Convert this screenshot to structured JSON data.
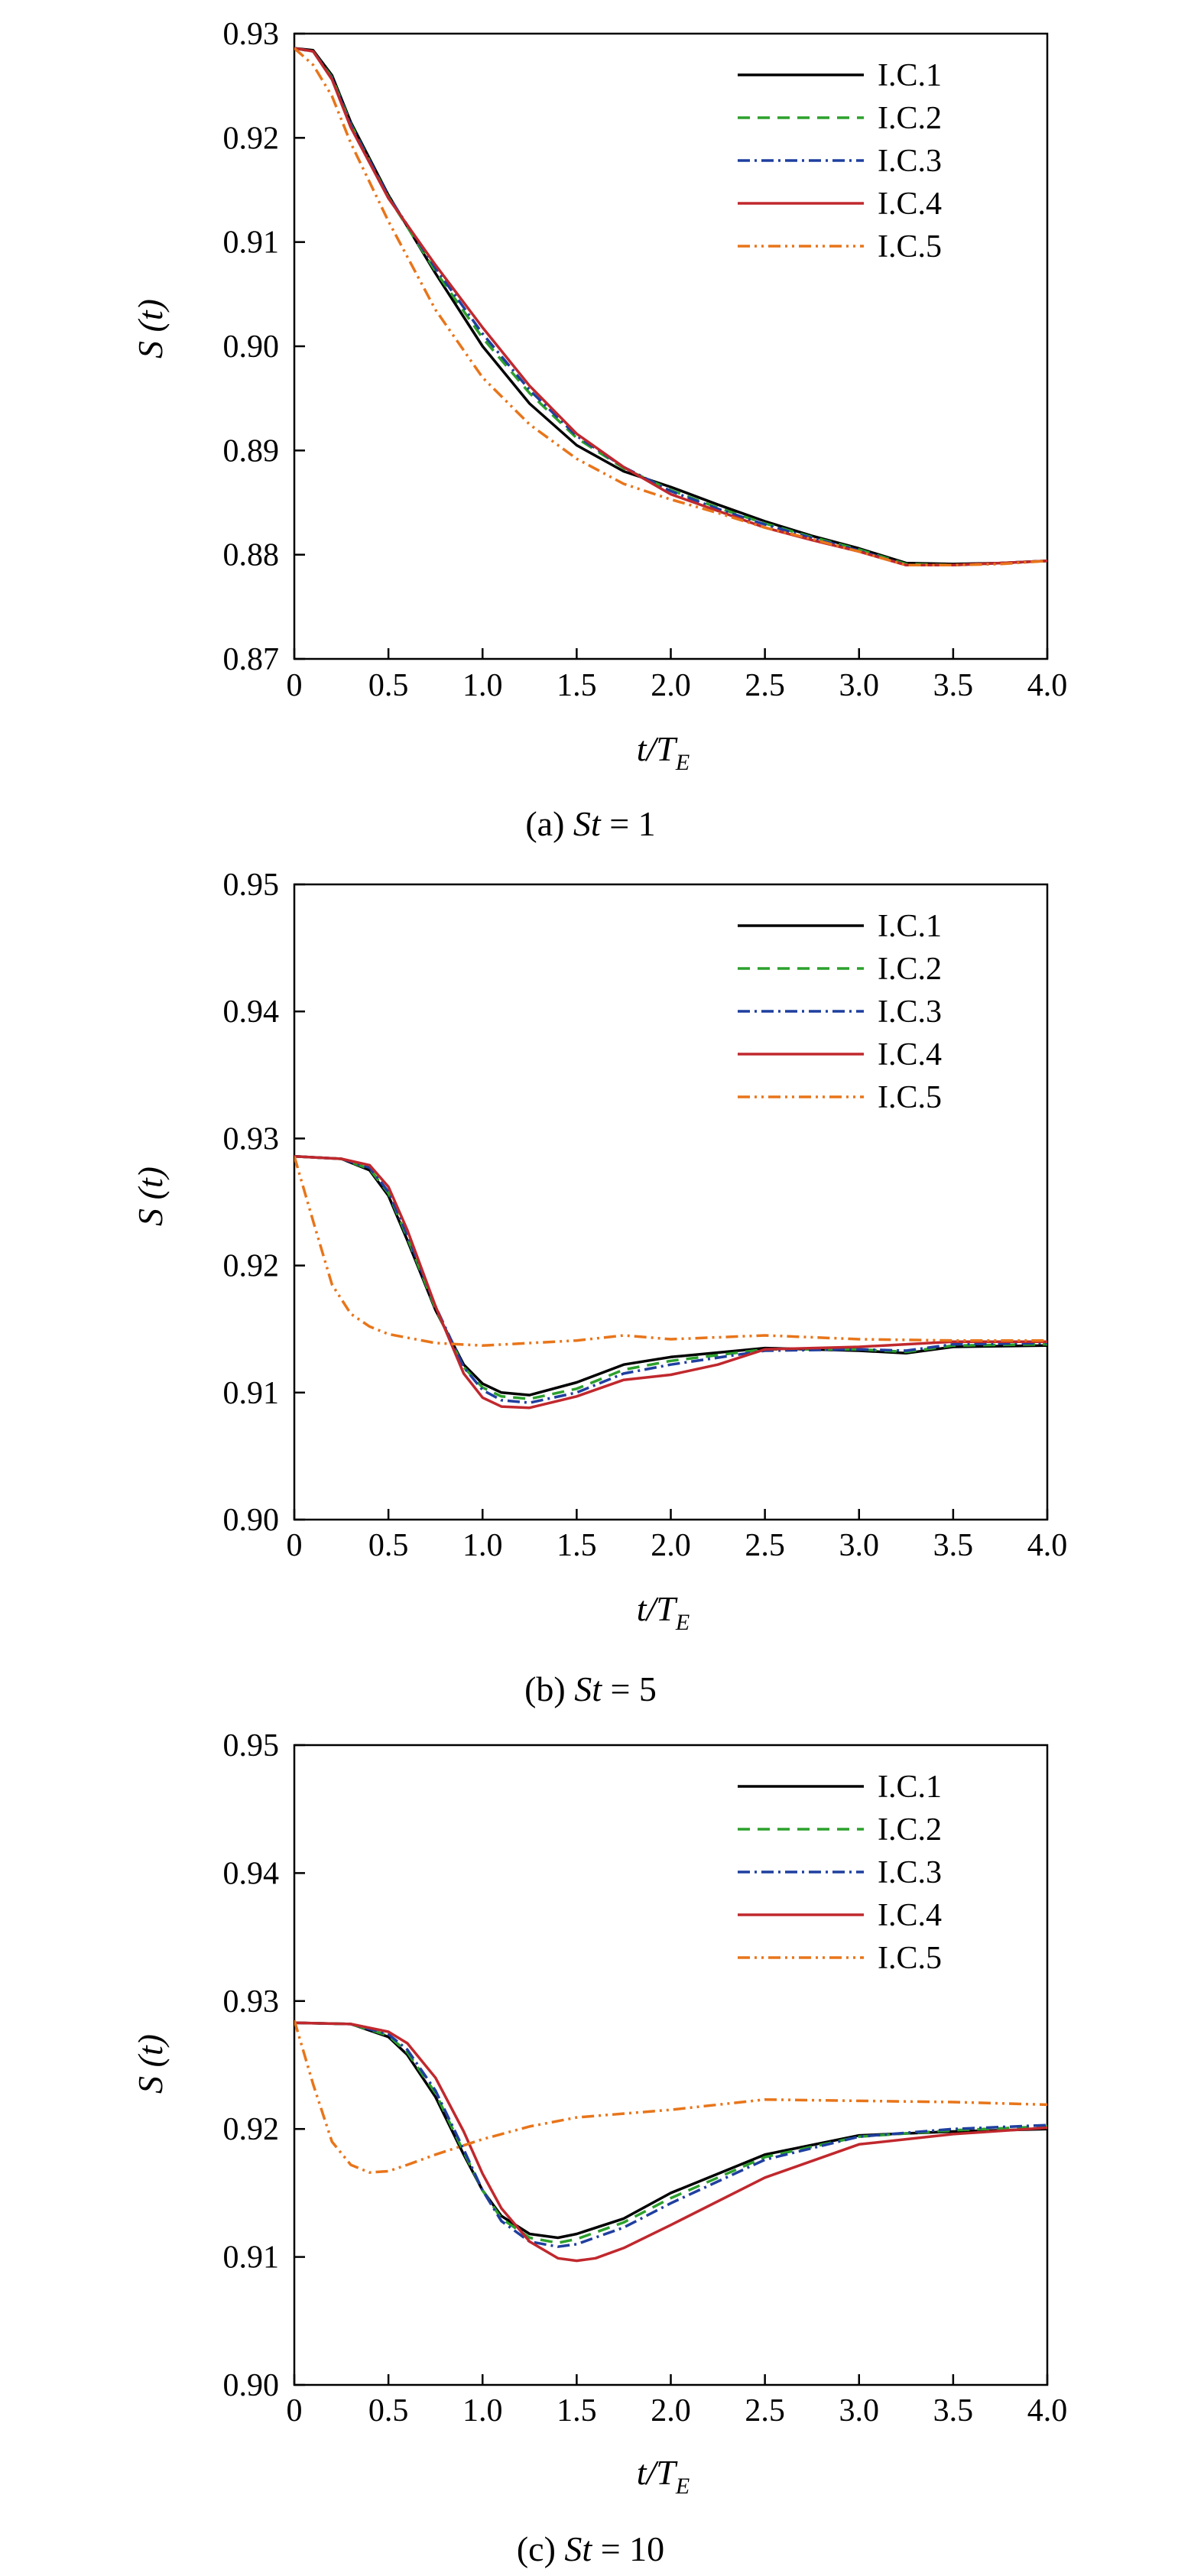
{
  "chart_data": [
    {
      "type": "line",
      "caption_prefix": "(a) ",
      "caption_var": "St",
      "caption_suffix": " = 1",
      "xlabel_main": "t/T",
      "xlabel_sub": "E",
      "ylabel": "S (t)",
      "xlim": [
        0,
        4
      ],
      "ylim": [
        0.87,
        0.93
      ],
      "x_ticks": [
        "0",
        "0.5",
        "1.0",
        "1.5",
        "2.0",
        "2.5",
        "3.0",
        "3.5",
        "4.0"
      ],
      "y_ticks": [
        "0.87",
        "0.88",
        "0.89",
        "0.90",
        "0.91",
        "0.92",
        "0.93"
      ],
      "y_tick_values": [
        0.87,
        0.88,
        0.89,
        0.9,
        0.91,
        0.92,
        0.93
      ],
      "legend_position": "top-right",
      "series": [
        {
          "name": "I.C.1",
          "color": "#000000",
          "dash": "",
          "x": [
            0,
            0.1,
            0.2,
            0.3,
            0.5,
            0.75,
            1.0,
            1.25,
            1.5,
            1.75,
            2.0,
            2.25,
            2.5,
            2.75,
            3.0,
            3.25,
            3.5,
            3.75,
            4.0
          ],
          "y": [
            0.9286,
            0.9284,
            0.926,
            0.9215,
            0.9145,
            0.907,
            0.9,
            0.8945,
            0.8905,
            0.888,
            0.8865,
            0.8848,
            0.8832,
            0.8818,
            0.8806,
            0.8792,
            0.8791,
            0.8792,
            0.8794
          ]
        },
        {
          "name": "I.C.2",
          "color": "#2ca02c",
          "dash": "16 10",
          "x": [
            0,
            0.1,
            0.2,
            0.3,
            0.5,
            0.75,
            1.0,
            1.25,
            1.5,
            1.75,
            2.0,
            2.25,
            2.5,
            2.75,
            3.0,
            3.25,
            3.5,
            3.75,
            4.0
          ],
          "y": [
            0.9286,
            0.9283,
            0.9258,
            0.9213,
            0.9143,
            0.9072,
            0.9008,
            0.8955,
            0.8912,
            0.8883,
            0.8862,
            0.8845,
            0.883,
            0.8817,
            0.8805,
            0.8791,
            0.879,
            0.8792,
            0.8794
          ]
        },
        {
          "name": "I.C.3",
          "color": "#1f3f9f",
          "dash": "16 6 3 6",
          "x": [
            0,
            0.1,
            0.2,
            0.3,
            0.5,
            0.75,
            1.0,
            1.25,
            1.5,
            1.75,
            2.0,
            2.25,
            2.5,
            2.75,
            3.0,
            3.25,
            3.5,
            3.75,
            4.0
          ],
          "y": [
            0.9286,
            0.9283,
            0.9257,
            0.9212,
            0.9144,
            0.9075,
            0.9012,
            0.8958,
            0.8914,
            0.8884,
            0.8861,
            0.8844,
            0.8829,
            0.8816,
            0.8804,
            0.879,
            0.879,
            0.8792,
            0.8794
          ]
        },
        {
          "name": "I.C.4",
          "color": "#c0282d",
          "dash": "",
          "x": [
            0,
            0.1,
            0.2,
            0.3,
            0.5,
            0.75,
            1.0,
            1.25,
            1.5,
            1.75,
            2.0,
            2.25,
            2.5,
            2.75,
            3.0,
            3.25,
            3.5,
            3.75,
            4.0
          ],
          "y": [
            0.9286,
            0.9283,
            0.9256,
            0.921,
            0.9142,
            0.9078,
            0.9018,
            0.8962,
            0.8916,
            0.8884,
            0.8858,
            0.8842,
            0.8826,
            0.8814,
            0.8803,
            0.879,
            0.879,
            0.8792,
            0.8794
          ]
        },
        {
          "name": "I.C.5",
          "color": "#e8751a",
          "dash": "16 6 3 6 3 6",
          "x": [
            0,
            0.1,
            0.2,
            0.3,
            0.5,
            0.75,
            1.0,
            1.25,
            1.5,
            1.75,
            2.0,
            2.25,
            2.5,
            2.75,
            3.0,
            3.25,
            3.5,
            3.75,
            4.0
          ],
          "y": [
            0.9286,
            0.927,
            0.924,
            0.9195,
            0.912,
            0.9035,
            0.897,
            0.8925,
            0.8892,
            0.8868,
            0.8853,
            0.884,
            0.8826,
            0.8815,
            0.8803,
            0.879,
            0.879,
            0.8791,
            0.8794
          ]
        }
      ]
    },
    {
      "type": "line",
      "caption_prefix": "(b) ",
      "caption_var": "St",
      "caption_suffix": " = 5",
      "xlabel_main": "t/T",
      "xlabel_sub": "E",
      "ylabel": "S (t)",
      "xlim": [
        0,
        4
      ],
      "ylim": [
        0.9,
        0.95
      ],
      "x_ticks": [
        "0",
        "0.5",
        "1.0",
        "1.5",
        "2.0",
        "2.5",
        "3.0",
        "3.5",
        "4.0"
      ],
      "y_ticks": [
        "0.90",
        "0.91",
        "0.92",
        "0.93",
        "0.94",
        "0.95"
      ],
      "y_tick_values": [
        0.9,
        0.91,
        0.92,
        0.93,
        0.94,
        0.95
      ],
      "legend_position": "top-right",
      "series": [
        {
          "name": "I.C.1",
          "color": "#000000",
          "dash": "",
          "x": [
            0,
            0.25,
            0.4,
            0.5,
            0.6,
            0.75,
            0.9,
            1.0,
            1.1,
            1.25,
            1.5,
            1.75,
            2.0,
            2.5,
            3.0,
            3.25,
            3.5,
            4.0
          ],
          "y": [
            0.9286,
            0.9284,
            0.9275,
            0.9255,
            0.922,
            0.9165,
            0.9122,
            0.9107,
            0.91,
            0.9098,
            0.9108,
            0.9122,
            0.9128,
            0.9135,
            0.9133,
            0.9131,
            0.9136,
            0.9137
          ]
        },
        {
          "name": "I.C.2",
          "color": "#2ca02c",
          "dash": "16 10",
          "x": [
            0,
            0.25,
            0.4,
            0.5,
            0.6,
            0.75,
            0.9,
            1.0,
            1.1,
            1.25,
            1.5,
            1.75,
            2.0,
            2.5,
            3.0,
            3.25,
            3.5,
            4.0
          ],
          "y": [
            0.9286,
            0.9284,
            0.9276,
            0.9257,
            0.9222,
            0.9166,
            0.912,
            0.9104,
            0.9097,
            0.9095,
            0.9103,
            0.9118,
            0.9125,
            0.9134,
            0.9134,
            0.9132,
            0.9137,
            0.9138
          ]
        },
        {
          "name": "I.C.3",
          "color": "#1f3f9f",
          "dash": "16 6 3 6",
          "x": [
            0,
            0.25,
            0.4,
            0.5,
            0.6,
            0.75,
            0.9,
            1.0,
            1.1,
            1.25,
            1.5,
            1.75,
            2.0,
            2.5,
            3.0,
            3.25,
            3.5,
            4.0
          ],
          "y": [
            0.9286,
            0.9284,
            0.9277,
            0.9258,
            0.9224,
            0.9168,
            0.912,
            0.9102,
            0.9094,
            0.9092,
            0.91,
            0.9115,
            0.9122,
            0.9133,
            0.9134,
            0.9133,
            0.9138,
            0.9139
          ]
        },
        {
          "name": "I.C.4",
          "color": "#c0282d",
          "dash": "",
          "x": [
            0,
            0.25,
            0.4,
            0.5,
            0.6,
            0.75,
            0.9,
            1.0,
            1.1,
            1.25,
            1.5,
            1.75,
            2.0,
            2.25,
            2.5,
            3.0,
            3.5,
            4.0
          ],
          "y": [
            0.9286,
            0.9284,
            0.9279,
            0.9262,
            0.9228,
            0.9168,
            0.9115,
            0.9096,
            0.9089,
            0.9088,
            0.9097,
            0.911,
            0.9114,
            0.9122,
            0.9134,
            0.9136,
            0.914,
            0.914
          ]
        },
        {
          "name": "I.C.5",
          "color": "#e8751a",
          "dash": "16 6 3 6 3 6",
          "x": [
            0,
            0.1,
            0.2,
            0.3,
            0.4,
            0.5,
            0.75,
            1.0,
            1.25,
            1.5,
            1.75,
            2.0,
            2.5,
            3.0,
            3.5,
            4.0
          ],
          "y": [
            0.9286,
            0.9235,
            0.9185,
            0.9162,
            0.9152,
            0.9146,
            0.9139,
            0.9137,
            0.9139,
            0.9141,
            0.9145,
            0.9142,
            0.9145,
            0.9142,
            0.9141,
            0.9141
          ]
        }
      ]
    },
    {
      "type": "line",
      "caption_prefix": "(c) ",
      "caption_var": "St",
      "caption_suffix": " = 10",
      "xlabel_main": "t/T",
      "xlabel_sub": "E",
      "ylabel": "S (t)",
      "xlim": [
        0,
        4
      ],
      "ylim": [
        0.9,
        0.95
      ],
      "x_ticks": [
        "0",
        "0.5",
        "1.0",
        "1.5",
        "2.0",
        "2.5",
        "3.0",
        "3.5",
        "4.0"
      ],
      "y_ticks": [
        "0.90",
        "0.91",
        "0.92",
        "0.93",
        "0.94",
        "0.95"
      ],
      "y_tick_values": [
        0.9,
        0.91,
        0.92,
        0.93,
        0.94,
        0.95
      ],
      "legend_position": "top-right",
      "series": [
        {
          "name": "I.C.1",
          "color": "#000000",
          "dash": "",
          "x": [
            0,
            0.3,
            0.5,
            0.6,
            0.75,
            0.9,
            1.0,
            1.1,
            1.25,
            1.4,
            1.5,
            1.75,
            2.0,
            2.5,
            3.0,
            3.5,
            4.0
          ],
          "y": [
            0.9283,
            0.9282,
            0.9272,
            0.9258,
            0.9225,
            0.918,
            0.9152,
            0.9132,
            0.9118,
            0.9115,
            0.9118,
            0.913,
            0.915,
            0.918,
            0.9195,
            0.9198,
            0.92
          ]
        },
        {
          "name": "I.C.2",
          "color": "#2ca02c",
          "dash": "16 10",
          "x": [
            0,
            0.3,
            0.5,
            0.6,
            0.75,
            0.9,
            1.0,
            1.1,
            1.25,
            1.4,
            1.5,
            1.75,
            2.0,
            2.5,
            3.0,
            3.5,
            4.0
          ],
          "y": [
            0.9283,
            0.9282,
            0.9273,
            0.926,
            0.9228,
            0.9182,
            0.9152,
            0.913,
            0.9115,
            0.9111,
            0.9114,
            0.9127,
            0.9146,
            0.9178,
            0.9194,
            0.9199,
            0.9202
          ]
        },
        {
          "name": "I.C.3",
          "color": "#1f3f9f",
          "dash": "16 6 3 6",
          "x": [
            0,
            0.3,
            0.5,
            0.6,
            0.75,
            0.9,
            1.0,
            1.1,
            1.25,
            1.4,
            1.5,
            1.75,
            2.0,
            2.5,
            3.0,
            3.5,
            4.0
          ],
          "y": [
            0.9283,
            0.9282,
            0.9274,
            0.9262,
            0.923,
            0.9184,
            0.9152,
            0.9128,
            0.9112,
            0.9108,
            0.911,
            0.9123,
            0.9142,
            0.9176,
            0.9194,
            0.92,
            0.9203
          ]
        },
        {
          "name": "I.C.4",
          "color": "#c0282d",
          "dash": "",
          "x": [
            0,
            0.3,
            0.5,
            0.6,
            0.75,
            0.9,
            1.0,
            1.1,
            1.25,
            1.4,
            1.5,
            1.6,
            1.75,
            2.0,
            2.5,
            3.0,
            3.5,
            4.0
          ],
          "y": [
            0.9283,
            0.9282,
            0.9276,
            0.9267,
            0.924,
            0.9198,
            0.9165,
            0.9138,
            0.9112,
            0.9099,
            0.9097,
            0.9099,
            0.9107,
            0.9125,
            0.9162,
            0.9188,
            0.9196,
            0.9201
          ]
        },
        {
          "name": "I.C.5",
          "color": "#e8751a",
          "dash": "16 6 3 6 3 6",
          "x": [
            0,
            0.1,
            0.2,
            0.3,
            0.4,
            0.5,
            0.6,
            0.75,
            1.0,
            1.25,
            1.5,
            2.0,
            2.5,
            3.0,
            3.5,
            4.0
          ],
          "y": [
            0.9285,
            0.9235,
            0.919,
            0.9172,
            0.9166,
            0.9167,
            0.9172,
            0.918,
            0.9192,
            0.9202,
            0.9209,
            0.9215,
            0.9223,
            0.9222,
            0.9221,
            0.9219
          ]
        }
      ]
    }
  ]
}
